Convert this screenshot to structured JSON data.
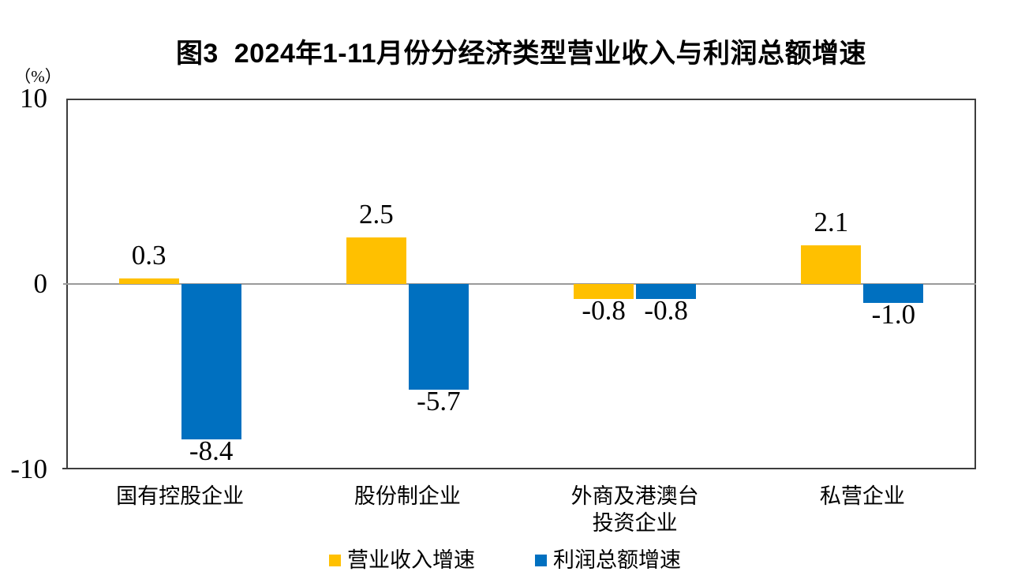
{
  "figure": {
    "title": "图3  2024年1-11月份分经济类型营业收入与利润总额增速",
    "unit_label": "（%）",
    "background_color": "#ffffff",
    "axis_color": "#3d3d3d",
    "zero_line_color": "#9a9a9a",
    "text_color": "#000000"
  },
  "legend": {
    "items": [
      {
        "key": "revenue-growth",
        "label": "营业收入增速",
        "color": "#FFC000"
      },
      {
        "key": "profit-growth",
        "label": "利润总额增速",
        "color": "#0070C0"
      }
    ]
  },
  "chart_data": {
    "type": "bar",
    "title": "图3 2024年1-11月份分经济类型营业收入与利润总额增速",
    "categories": [
      "国有控股企业",
      "股份制企业",
      "外商及港澳台\n投资企业",
      "私营企业"
    ],
    "series": [
      {
        "key": "revenue-growth",
        "name": "营业收入增速",
        "color": "#FFC000",
        "values": [
          0.3,
          2.5,
          -0.8,
          2.1
        ],
        "labels": [
          "0.3",
          "2.5",
          "-0.8",
          "2.1"
        ]
      },
      {
        "key": "profit-growth",
        "name": "利润总额增速",
        "color": "#0070C0",
        "values": [
          -8.4,
          -5.7,
          -0.8,
          -1.0
        ],
        "labels": [
          "-8.4",
          "-5.7",
          "-0.8",
          "-1.0"
        ]
      }
    ],
    "ylabel": "（%）",
    "ylim": [
      -10,
      10
    ],
    "yticks": [
      10,
      0,
      -10
    ],
    "grid": false,
    "legend_position": "bottom"
  }
}
